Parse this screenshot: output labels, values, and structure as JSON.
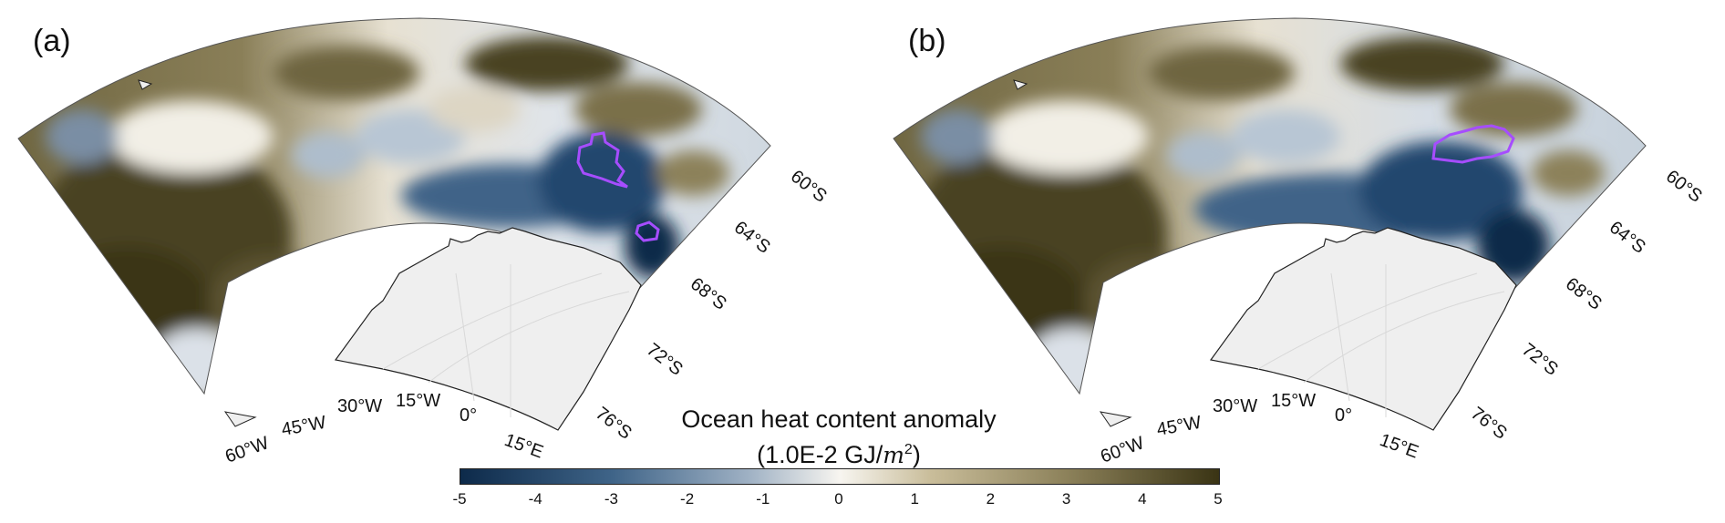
{
  "panels": [
    {
      "label": "(a)",
      "lat_labels": [
        "60°S",
        "64°S",
        "68°S",
        "72°S",
        "76°S"
      ],
      "lon_labels": [
        "60°W",
        "45°W",
        "30°W",
        "15°W",
        "0°",
        "15°E"
      ]
    },
    {
      "label": "(b)",
      "lat_labels": [
        "60°S",
        "64°S",
        "68°S",
        "72°S",
        "76°S"
      ],
      "lon_labels": [
        "60°W",
        "45°W",
        "30°W",
        "15°W",
        "0°",
        "15°E"
      ]
    }
  ],
  "colorbar": {
    "title": "Ocean heat content anomaly",
    "units_prefix": "(1.0E-2 GJ/",
    "units_m": "m",
    "units_exp": "2",
    "units_suffix": ")",
    "ticks": [
      "-5",
      "-4",
      "-3",
      "-2",
      "-1",
      "0",
      "1",
      "2",
      "3",
      "4",
      "5"
    ],
    "min_color": "#0d2a4a",
    "mid_color": "#f7f5f0",
    "max_color": "#3a3414"
  },
  "colors": {
    "polynya_contour": "#a64dff",
    "land": "#efefef",
    "coastline": "#222222"
  }
}
